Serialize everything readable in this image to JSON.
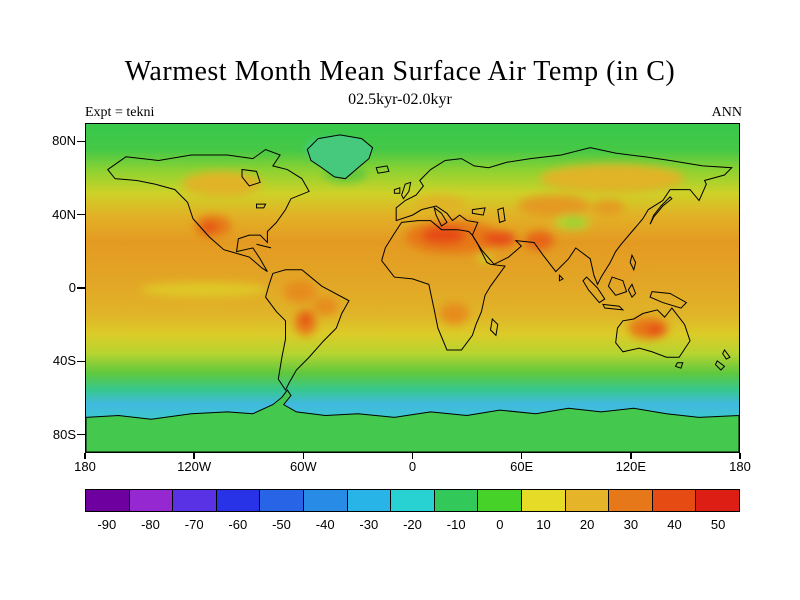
{
  "page": {
    "background_color": "#ffffff"
  },
  "header": {
    "title": "Warmest Month Mean Surface Air Temp (in C)",
    "subtitle": "02.5kyr-02.0kyr",
    "experiment_label": "Expt = tekni",
    "season_label": "ANN"
  },
  "chart_data": {
    "type": "heatmap",
    "subtype": "filled-contour world temperature map, equirectangular projection",
    "title": "Warmest Month Mean Surface Air Temp (in C)",
    "subtitle": "02.5kyr-02.0kyr",
    "experiment": "tekni",
    "season": "ANN",
    "units": "C",
    "lon_range": [
      -180,
      180
    ],
    "lat_range": [
      -90,
      90
    ],
    "grid": false,
    "legend_position": "horizontal colorbar below map",
    "lat_ticks": [
      {
        "label": "80N",
        "lat": 80
      },
      {
        "label": "40N",
        "lat": 40
      },
      {
        "label": "0",
        "lat": 0
      },
      {
        "label": "40S",
        "lat": -40
      },
      {
        "label": "80S",
        "lat": -80
      }
    ],
    "lon_ticks": [
      {
        "label": "180",
        "lon": -180
      },
      {
        "label": "120W",
        "lon": -120
      },
      {
        "label": "60W",
        "lon": -60
      },
      {
        "label": "0",
        "lon": 0
      },
      {
        "label": "60E",
        "lon": 60
      },
      {
        "label": "120E",
        "lon": 120
      },
      {
        "label": "180",
        "lon": 180
      }
    ],
    "colorbar": {
      "levels": [
        -90,
        -80,
        -70,
        -60,
        -50,
        -40,
        -30,
        -20,
        -10,
        0,
        10,
        20,
        30,
        40,
        50
      ],
      "colors": [
        "#6e00a0",
        "#9628d2",
        "#5a32e6",
        "#2832e6",
        "#2864e6",
        "#288ce6",
        "#28b4e6",
        "#28d2d2",
        "#32c85a",
        "#46d228",
        "#e6dc28",
        "#e6b428",
        "#e67819",
        "#e64b14",
        "#dc1e14"
      ]
    },
    "approx_zonal_mean_c": [
      {
        "lat": 85,
        "temp_c": 3
      },
      {
        "lat": 70,
        "temp_c": 8
      },
      {
        "lat": 55,
        "temp_c": 14
      },
      {
        "lat": 40,
        "temp_c": 22
      },
      {
        "lat": 20,
        "temp_c": 28
      },
      {
        "lat": 0,
        "temp_c": 27
      },
      {
        "lat": -20,
        "temp_c": 24
      },
      {
        "lat": -40,
        "temp_c": 14
      },
      {
        "lat": -55,
        "temp_c": 6
      },
      {
        "lat": -65,
        "temp_c": -5
      },
      {
        "lat": -80,
        "temp_c": 2
      }
    ],
    "warm_regions": [
      "Sahara / North Africa",
      "Arabian Peninsula",
      "Northern India",
      "Southwest North America",
      "Amazon and Gran Chaco",
      "Southern Africa",
      "Australian interior"
    ],
    "cool_regions": [
      "Baffin Bay / Greenland",
      "Tibetan Plateau",
      "Southern Ocean",
      "Antarctica"
    ]
  }
}
